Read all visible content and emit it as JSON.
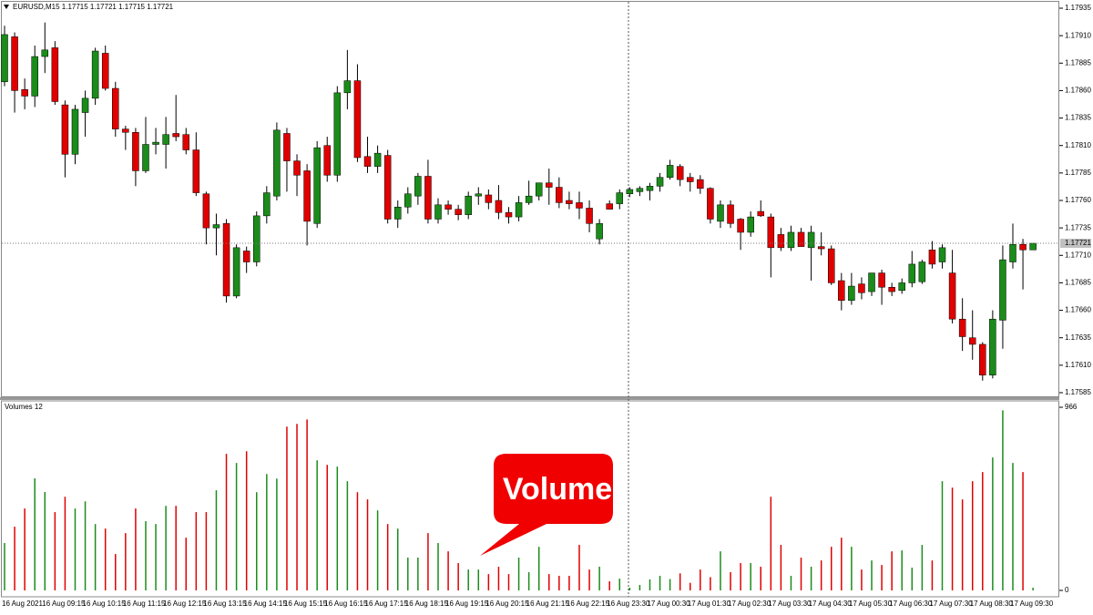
{
  "chart_data": [
    {
      "type": "candlestick",
      "title": "EURUSD,M15 1.17715 1.17721 1.17715 1.17721",
      "categories": [
        "16 Aug 2021",
        null,
        null,
        null,
        "16 Aug 09:15",
        null,
        null,
        null,
        "16 Aug 10:15",
        null,
        null,
        null,
        "16 Aug 11:15",
        null,
        null,
        null,
        "16 Aug 12:15",
        null,
        null,
        null,
        "16 Aug 13:15",
        null,
        null,
        null,
        "16 Aug 14:15",
        null,
        null,
        null,
        "16 Aug 15:15",
        null,
        null,
        null,
        "16 Aug 16:15",
        null,
        null,
        null,
        "16 Aug 17:15",
        null,
        null,
        null,
        "16 Aug 18:15",
        null,
        null,
        null,
        "16 Aug 19:15",
        null,
        null,
        null,
        "16 Aug 20:15",
        null,
        null,
        null,
        "16 Aug 21:15",
        null,
        null,
        null,
        "16 Aug 22:15",
        null,
        null,
        null,
        "16 Aug 23:30",
        null,
        null,
        null,
        "17 Aug 00:30",
        null,
        null,
        null,
        "17 Aug 01:30",
        null,
        null,
        null,
        "17 Aug 02:30",
        null,
        null,
        null,
        "17 Aug 03:30",
        null,
        null,
        null,
        "17 Aug 04:30",
        null,
        null,
        null,
        "17 Aug 05:30",
        null,
        null,
        null,
        "17 Aug 06:30",
        null,
        null,
        null,
        "17 Aug 07:30",
        null,
        null,
        null,
        "17 Aug 08:30",
        null,
        null,
        null,
        "17 Aug 09:30",
        null,
        null
      ],
      "open": [
        1.17868,
        1.17909,
        1.17861,
        1.17855,
        1.17891,
        1.17899,
        1.17847,
        1.17802,
        1.1784,
        1.17853,
        1.17894,
        1.17862,
        1.17825,
        1.17822,
        1.17787,
        1.17811,
        1.17811,
        1.17821,
        1.1782,
        1.17806,
        1.17766,
        1.17735,
        1.17739,
        1.17673,
        1.17714,
        1.17704,
        1.17746,
        1.17764,
        1.17821,
        1.17796,
        1.17787,
        1.17739,
        1.1781,
        1.17783,
        1.17858,
        1.17869,
        1.178,
        1.17791,
        1.17801,
        1.17743,
        1.17754,
        1.17764,
        1.17782,
        1.17743,
        1.17756,
        1.17752,
        1.17747,
        1.17764,
        1.17765,
        1.1776,
        1.17749,
        1.17745,
        1.17758,
        1.17764,
        1.17776,
        1.17772,
        1.1776,
        1.17758,
        1.17753,
        1.17725,
        1.17757,
        1.17757,
        1.17766,
        1.17768,
        1.17769,
        1.17773,
        1.17781,
        1.17791,
        1.17781,
        1.17779,
        1.17771,
        1.17741,
        1.17756,
        1.17743,
        1.17731,
        1.1775,
        1.17745,
        1.17729,
        1.17717,
        1.17731,
        1.17717,
        1.17718,
        1.17716,
        1.17687,
        1.17669,
        1.17684,
        1.17677,
        1.17694,
        1.17681,
        1.17678,
        1.17685,
        1.17686,
        1.17715,
        1.17704,
        1.17694,
        1.17652,
        1.17635,
        1.17629,
        1.17601,
        1.17651,
        1.17704,
        1.1772,
        1.17715
      ],
      "high": [
        1.17919,
        1.17913,
        1.17871,
        1.17901,
        1.17922,
        1.17905,
        1.17851,
        1.17847,
        1.1786,
        1.17899,
        1.17901,
        1.17868,
        1.17828,
        1.17826,
        1.17836,
        1.17826,
        1.17836,
        1.17856,
        1.17826,
        1.17822,
        1.17768,
        1.17748,
        1.17743,
        1.1772,
        1.17718,
        1.1775,
        1.17773,
        1.17831,
        1.17826,
        1.17802,
        1.17793,
        1.17814,
        1.17818,
        1.17864,
        1.17897,
        1.17884,
        1.17818,
        1.1781,
        1.17806,
        1.1776,
        1.17772,
        1.17785,
        1.17797,
        1.17762,
        1.1776,
        1.17756,
        1.17768,
        1.17772,
        1.1777,
        1.17774,
        1.17754,
        1.17764,
        1.17778,
        1.17776,
        1.17789,
        1.17781,
        1.17768,
        1.17768,
        1.1776,
        1.17743,
        1.1776,
        1.1777,
        1.17772,
        1.17773,
        1.17776,
        1.17785,
        1.17797,
        1.17793,
        1.17785,
        1.17783,
        1.17772,
        1.1776,
        1.1776,
        1.17744,
        1.1775,
        1.1776,
        1.17748,
        1.17735,
        1.17737,
        1.17735,
        1.17737,
        1.17731,
        1.17719,
        1.17694,
        1.17694,
        1.1769,
        1.17694,
        1.17697,
        1.17685,
        1.17689,
        1.17714,
        1.17706,
        1.17723,
        1.1772,
        1.17715,
        1.17671,
        1.1766,
        1.17631,
        1.1766,
        1.17719,
        1.17739,
        1.17725,
        1.17721
      ],
      "low": [
        1.17864,
        1.1784,
        1.17843,
        1.17845,
        1.17876,
        1.17847,
        1.17781,
        1.17793,
        1.17818,
        1.17847,
        1.1786,
        1.17818,
        1.17806,
        1.17773,
        1.17785,
        1.17802,
        1.17789,
        1.17814,
        1.17802,
        1.17764,
        1.1772,
        1.1771,
        1.17667,
        1.17671,
        1.17694,
        1.177,
        1.17739,
        1.1776,
        1.17768,
        1.17764,
        1.17719,
        1.17735,
        1.17777,
        1.17777,
        1.17843,
        1.17795,
        1.17785,
        1.17785,
        1.17739,
        1.17735,
        1.17748,
        1.17756,
        1.17739,
        1.17739,
        1.17747,
        1.17742,
        1.17743,
        1.17756,
        1.17752,
        1.17743,
        1.17739,
        1.17741,
        1.17756,
        1.1776,
        1.17756,
        1.17753,
        1.17752,
        1.17743,
        1.17731,
        1.1772,
        1.17752,
        1.17752,
        1.17763,
        1.17764,
        1.1776,
        1.17768,
        1.17779,
        1.17773,
        1.17768,
        1.17766,
        1.17739,
        1.17735,
        1.17735,
        1.17715,
        1.17727,
        1.17745,
        1.1769,
        1.17714,
        1.17714,
        1.17719,
        1.17687,
        1.1771,
        1.17683,
        1.1766,
        1.17665,
        1.1767,
        1.17673,
        1.17665,
        1.17673,
        1.17675,
        1.17681,
        1.17684,
        1.17698,
        1.17698,
        1.17648,
        1.17623,
        1.17615,
        1.17596,
        1.17598,
        1.17625,
        1.17698,
        1.17679,
        1.17715
      ],
      "close": [
        1.17911,
        1.1786,
        1.17855,
        1.17891,
        1.17897,
        1.1785,
        1.17802,
        1.17843,
        1.17853,
        1.17896,
        1.17862,
        1.17825,
        1.17822,
        1.17787,
        1.17811,
        1.17813,
        1.1782,
        1.17818,
        1.17806,
        1.17767,
        1.17735,
        1.17738,
        1.17673,
        1.17717,
        1.17704,
        1.17746,
        1.17767,
        1.17824,
        1.17796,
        1.17783,
        1.17741,
        1.17808,
        1.17783,
        1.17858,
        1.17869,
        1.17799,
        1.17791,
        1.17803,
        1.17743,
        1.17754,
        1.17766,
        1.17782,
        1.17743,
        1.17756,
        1.17752,
        1.17747,
        1.17764,
        1.17766,
        1.17758,
        1.17749,
        1.17745,
        1.17758,
        1.17764,
        1.17776,
        1.17772,
        1.17758,
        1.17757,
        1.17753,
        1.17739,
        1.17739,
        1.17752,
        1.17767,
        1.1777,
        1.17771,
        1.17773,
        1.17781,
        1.17792,
        1.17779,
        1.17777,
        1.17771,
        1.17743,
        1.17756,
        1.17739,
        1.17731,
        1.17745,
        1.17746,
        1.17717,
        1.17717,
        1.17731,
        1.17718,
        1.17731,
        1.17716,
        1.17685,
        1.17669,
        1.17682,
        1.17676,
        1.17694,
        1.17681,
        1.17677,
        1.17685,
        1.17702,
        1.17704,
        1.17702,
        1.17717,
        1.17652,
        1.17636,
        1.17629,
        1.17601,
        1.17652,
        1.17706,
        1.1772,
        1.17715,
        1.17721
      ],
      "up_color": "#1a8c1a",
      "down_color": "#e00000",
      "ylim": [
        1.17585,
        1.17935
      ],
      "yticks": [
        1.17935,
        {
          "value": 1.1791,
          "label": "1.17910"
        },
        1.17885,
        {
          "value": 1.1786,
          "label": "1.17860"
        },
        1.17835,
        {
          "value": 1.1781,
          "label": "1.17810"
        },
        1.17785,
        {
          "value": 1.1776,
          "label": "1.17760"
        },
        1.17735,
        {
          "value": 1.1771,
          "label": "1.17710"
        },
        1.17685,
        {
          "value": 1.1766,
          "label": "1.17660"
        },
        1.17635,
        {
          "value": 1.1761,
          "label": "1.17610"
        },
        1.17585
      ]
    },
    {
      "type": "bar",
      "title": "Volumes 12",
      "annotation": "Volume",
      "values": [
        250,
        336,
        432,
        591,
        519,
        413,
        494,
        432,
        470,
        350,
        326,
        192,
        302,
        432,
        365,
        350,
        446,
        446,
        278,
        413,
        413,
        528,
        720,
        672,
        734,
        518,
        614,
        590,
        864,
        878,
        902,
        686,
        662,
        653,
        576,
        518,
        480,
        422,
        350,
        326,
        173,
        173,
        302,
        250,
        206,
        144,
        110,
        110,
        86,
        125,
        86,
        173,
        96,
        230,
        86,
        77,
        77,
        240,
        110,
        125,
        48,
        62,
        14,
        29,
        58,
        77,
        60,
        90,
        40,
        110,
        70,
        206,
        96,
        144,
        144,
        125,
        494,
        240,
        77,
        173,
        125,
        158,
        230,
        278,
        230,
        110,
        158,
        134,
        206,
        211,
        120,
        240,
        158,
        576,
        542,
        480,
        576,
        624,
        701,
        950,
        672,
        624,
        14
      ],
      "ylim": [
        0,
        966
      ],
      "yticks": [
        966,
        0
      ]
    }
  ]
}
